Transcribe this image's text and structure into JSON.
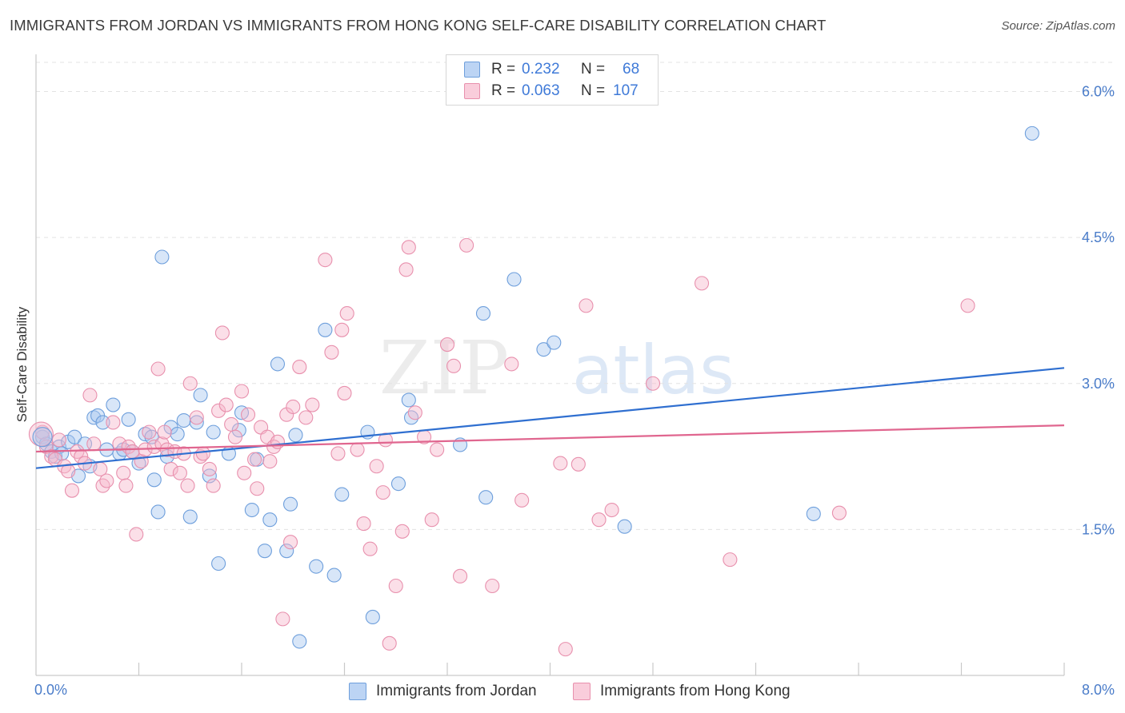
{
  "title": "IMMIGRANTS FROM JORDAN VS IMMIGRANTS FROM HONG KONG SELF-CARE DISABILITY CORRELATION CHART",
  "source": "Source: ZipAtlas.com",
  "watermark": {
    "zip": "ZIP",
    "atlas": "atlas"
  },
  "colors": {
    "jordan_fill": "#a9c8f0",
    "jordan_stroke": "#6e9fdc",
    "jordan_line": "#2f6fd0",
    "hk_fill": "#f6b9cb",
    "hk_stroke": "#e890ad",
    "hk_line": "#e0668f",
    "tick_text": "#4a7cc9",
    "grid": "#e3e3e3"
  },
  "legend": {
    "rows": [
      {
        "r_label": "R =",
        "r_value": "0.232",
        "n_label": "N =",
        "n_value": "68",
        "series": "jordan"
      },
      {
        "r_label": "R =",
        "r_value": "0.063",
        "n_label": "N =",
        "n_value": "107",
        "series": "hk"
      }
    ]
  },
  "chart_data": {
    "type": "scatter",
    "xlabel": "",
    "ylabel": "Self-Care Disability",
    "xlim": [
      0,
      8
    ],
    "ylim": [
      0,
      6.3
    ],
    "x_tick_labels": {
      "left": "0.0%",
      "right": "8.0%"
    },
    "y_ticks": [
      {
        "value": 1.5,
        "label": "1.5%"
      },
      {
        "value": 3.0,
        "label": "3.0%"
      },
      {
        "value": 4.5,
        "label": "4.5%"
      },
      {
        "value": 6.0,
        "label": "6.0%"
      }
    ],
    "grid": "horizontal dashed",
    "legend_position": "top-center",
    "series": [
      {
        "name": "Immigrants from Jordan",
        "key": "jordan",
        "trend": {
          "x0": 0,
          "y0": 2.13,
          "x1": 8,
          "y1": 3.16
        },
        "points": [
          [
            0.05,
            2.45
          ],
          [
            0.08,
            2.38
          ],
          [
            0.12,
            2.3
          ],
          [
            0.15,
            2.25
          ],
          [
            0.18,
            2.35
          ],
          [
            0.2,
            2.28
          ],
          [
            0.25,
            2.4
          ],
          [
            0.3,
            2.45
          ],
          [
            0.33,
            2.05
          ],
          [
            0.38,
            2.38
          ],
          [
            0.42,
            2.15
          ],
          [
            0.45,
            2.65
          ],
          [
            0.48,
            2.67
          ],
          [
            0.52,
            2.6
          ],
          [
            0.55,
            2.32
          ],
          [
            0.6,
            2.78
          ],
          [
            0.65,
            2.28
          ],
          [
            0.68,
            2.32
          ],
          [
            0.72,
            2.63
          ],
          [
            0.75,
            2.3
          ],
          [
            0.8,
            2.18
          ],
          [
            0.85,
            2.48
          ],
          [
            0.9,
            2.45
          ],
          [
            0.92,
            2.01
          ],
          [
            0.95,
            1.68
          ],
          [
            0.98,
            4.3
          ],
          [
            1.02,
            2.25
          ],
          [
            1.05,
            2.55
          ],
          [
            1.1,
            2.48
          ],
          [
            1.15,
            2.62
          ],
          [
            1.2,
            1.63
          ],
          [
            1.25,
            2.6
          ],
          [
            1.28,
            2.88
          ],
          [
            1.35,
            2.05
          ],
          [
            1.38,
            2.5
          ],
          [
            1.42,
            1.15
          ],
          [
            1.5,
            2.28
          ],
          [
            1.58,
            2.52
          ],
          [
            1.6,
            2.7
          ],
          [
            1.68,
            1.7
          ],
          [
            1.72,
            2.22
          ],
          [
            1.78,
            1.28
          ],
          [
            1.82,
            1.6
          ],
          [
            1.88,
            3.2
          ],
          [
            1.95,
            1.28
          ],
          [
            1.98,
            1.76
          ],
          [
            2.02,
            2.47
          ],
          [
            2.05,
            0.35
          ],
          [
            2.18,
            1.12
          ],
          [
            2.25,
            3.55
          ],
          [
            2.32,
            1.03
          ],
          [
            2.38,
            1.86
          ],
          [
            2.58,
            2.5
          ],
          [
            2.62,
            0.6
          ],
          [
            2.82,
            1.97
          ],
          [
            2.9,
            2.83
          ],
          [
            2.92,
            2.65
          ],
          [
            3.3,
            2.37
          ],
          [
            3.48,
            3.72
          ],
          [
            3.5,
            1.83
          ],
          [
            3.72,
            4.07
          ],
          [
            3.95,
            3.35
          ],
          [
            4.03,
            3.42
          ],
          [
            4.58,
            1.53
          ],
          [
            6.05,
            1.66
          ],
          [
            7.75,
            5.57
          ]
        ]
      },
      {
        "name": "Immigrants from Hong Kong",
        "key": "hk",
        "trend": {
          "x0": 0,
          "y0": 2.3,
          "x1": 8,
          "y1": 2.57
        },
        "points": [
          [
            0.05,
            2.5
          ],
          [
            0.08,
            2.35
          ],
          [
            0.12,
            2.25
          ],
          [
            0.15,
            2.22
          ],
          [
            0.18,
            2.42
          ],
          [
            0.22,
            2.15
          ],
          [
            0.25,
            2.1
          ],
          [
            0.28,
            1.9
          ],
          [
            0.32,
            2.3
          ],
          [
            0.35,
            2.25
          ],
          [
            0.38,
            2.18
          ],
          [
            0.42,
            2.88
          ],
          [
            0.45,
            2.38
          ],
          [
            0.5,
            2.12
          ],
          [
            0.52,
            1.95
          ],
          [
            0.55,
            2.0
          ],
          [
            0.6,
            2.6
          ],
          [
            0.65,
            2.38
          ],
          [
            0.68,
            2.08
          ],
          [
            0.7,
            1.95
          ],
          [
            0.72,
            2.35
          ],
          [
            0.75,
            2.3
          ],
          [
            0.78,
            1.45
          ],
          [
            0.82,
            2.2
          ],
          [
            0.85,
            2.32
          ],
          [
            0.88,
            2.5
          ],
          [
            0.92,
            2.35
          ],
          [
            0.95,
            3.15
          ],
          [
            0.98,
            2.38
          ],
          [
            1.0,
            2.5
          ],
          [
            1.02,
            2.32
          ],
          [
            1.05,
            2.12
          ],
          [
            1.08,
            2.3
          ],
          [
            1.12,
            2.08
          ],
          [
            1.15,
            2.28
          ],
          [
            1.18,
            1.95
          ],
          [
            1.2,
            3.0
          ],
          [
            1.25,
            2.65
          ],
          [
            1.28,
            2.25
          ],
          [
            1.3,
            2.28
          ],
          [
            1.35,
            2.12
          ],
          [
            1.38,
            1.95
          ],
          [
            1.42,
            2.72
          ],
          [
            1.45,
            3.52
          ],
          [
            1.48,
            2.78
          ],
          [
            1.52,
            2.58
          ],
          [
            1.55,
            2.45
          ],
          [
            1.6,
            2.92
          ],
          [
            1.62,
            2.08
          ],
          [
            1.65,
            2.68
          ],
          [
            1.7,
            2.22
          ],
          [
            1.72,
            1.92
          ],
          [
            1.75,
            2.55
          ],
          [
            1.8,
            2.45
          ],
          [
            1.82,
            2.2
          ],
          [
            1.85,
            2.35
          ],
          [
            1.88,
            2.4
          ],
          [
            1.92,
            0.58
          ],
          [
            1.95,
            2.68
          ],
          [
            1.98,
            1.37
          ],
          [
            2.0,
            2.76
          ],
          [
            2.05,
            3.17
          ],
          [
            2.1,
            2.65
          ],
          [
            2.15,
            2.78
          ],
          [
            2.25,
            4.27
          ],
          [
            2.3,
            3.32
          ],
          [
            2.35,
            2.28
          ],
          [
            2.38,
            3.55
          ],
          [
            2.4,
            2.9
          ],
          [
            2.42,
            3.72
          ],
          [
            2.5,
            2.32
          ],
          [
            2.55,
            1.56
          ],
          [
            2.6,
            1.3
          ],
          [
            2.65,
            2.15
          ],
          [
            2.7,
            1.88
          ],
          [
            2.72,
            2.42
          ],
          [
            2.75,
            0.33
          ],
          [
            2.8,
            0.92
          ],
          [
            2.85,
            1.48
          ],
          [
            2.88,
            4.17
          ],
          [
            2.9,
            4.4
          ],
          [
            2.95,
            2.7
          ],
          [
            3.02,
            2.45
          ],
          [
            3.08,
            1.6
          ],
          [
            3.12,
            2.32
          ],
          [
            3.2,
            3.4
          ],
          [
            3.25,
            3.18
          ],
          [
            3.3,
            1.02
          ],
          [
            3.35,
            4.42
          ],
          [
            3.55,
            0.92
          ],
          [
            3.7,
            3.2
          ],
          [
            3.78,
            1.8
          ],
          [
            4.08,
            2.18
          ],
          [
            4.12,
            0.27
          ],
          [
            4.22,
            2.17
          ],
          [
            4.28,
            3.8
          ],
          [
            4.38,
            1.6
          ],
          [
            4.48,
            1.7
          ],
          [
            4.8,
            3.0
          ],
          [
            5.18,
            4.03
          ],
          [
            5.4,
            1.19
          ],
          [
            6.25,
            1.67
          ],
          [
            7.25,
            3.8
          ]
        ]
      }
    ]
  },
  "bottom_legend": [
    {
      "label": "Immigrants from Jordan",
      "series": "jordan"
    },
    {
      "label": "Immigrants from Hong Kong",
      "series": "hk"
    }
  ]
}
